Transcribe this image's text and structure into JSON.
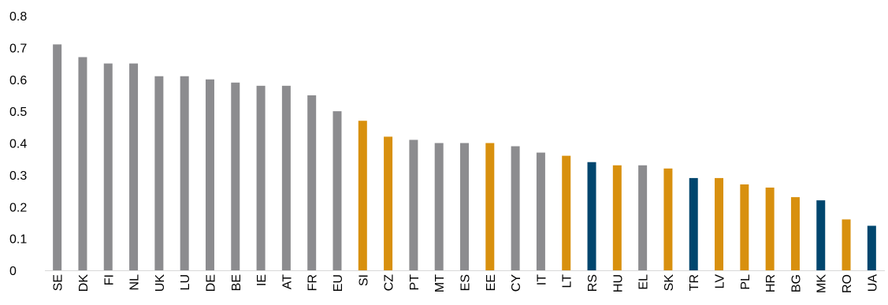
{
  "chart_data": {
    "type": "bar",
    "title": "",
    "xlabel": "",
    "ylabel": "",
    "ylim": [
      0,
      0.8
    ],
    "yticks": [
      "0",
      "0.1",
      "0.2",
      "0.3",
      "0.4",
      "0.5",
      "0.6",
      "0.7",
      "0.8"
    ],
    "grid": false,
    "legend": "none",
    "colors": {
      "grey": "#8c8c8f",
      "orange": "#d8900e",
      "blue": "#00466e"
    },
    "categories": [
      "SE",
      "DK",
      "FI",
      "NL",
      "UK",
      "LU",
      "DE",
      "BE",
      "IE",
      "AT",
      "FR",
      "EU",
      "SI",
      "CZ",
      "PT",
      "MT",
      "ES",
      "EE",
      "CY",
      "IT",
      "LT",
      "RS",
      "HU",
      "EL",
      "SK",
      "TR",
      "LV",
      "PL",
      "HR",
      "BG",
      "MK",
      "RO",
      "UA"
    ],
    "values": [
      0.71,
      0.67,
      0.65,
      0.65,
      0.61,
      0.61,
      0.6,
      0.59,
      0.58,
      0.58,
      0.55,
      0.5,
      0.47,
      0.42,
      0.41,
      0.4,
      0.4,
      0.4,
      0.39,
      0.37,
      0.36,
      0.34,
      0.33,
      0.33,
      0.32,
      0.29,
      0.29,
      0.27,
      0.26,
      0.23,
      0.22,
      0.16,
      0.14
    ],
    "bar_colors": [
      "grey",
      "grey",
      "grey",
      "grey",
      "grey",
      "grey",
      "grey",
      "grey",
      "grey",
      "grey",
      "grey",
      "grey",
      "orange",
      "orange",
      "grey",
      "grey",
      "grey",
      "orange",
      "grey",
      "grey",
      "orange",
      "blue",
      "orange",
      "grey",
      "orange",
      "blue",
      "orange",
      "orange",
      "orange",
      "orange",
      "blue",
      "orange",
      "blue"
    ]
  }
}
